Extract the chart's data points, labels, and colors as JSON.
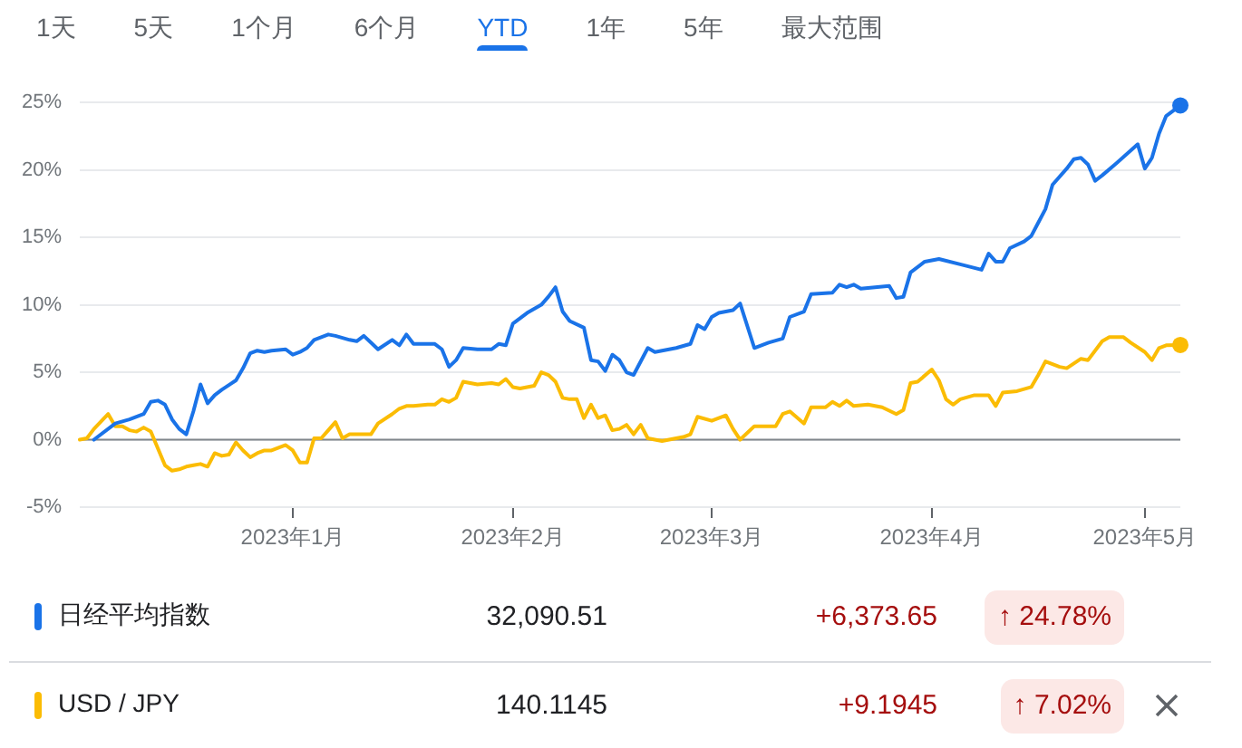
{
  "chart_data": [
    {
      "type": "other",
      "categories": [
        "1天",
        "5天",
        "1个月",
        "6个月",
        "YTD",
        "1年",
        "5年",
        "最大范围"
      ],
      "colors": [
        "#5f6368",
        "#5f6368",
        "#5f6368",
        "#5f6368",
        "#1a73e8",
        "#5f6368",
        "#5f6368",
        "#5f6368"
      ]
    },
    {
      "type": "line",
      "xlim": [
        "2022-12-02",
        "2023-05-06"
      ],
      "xticks": [
        {
          "value": "2023-01-01",
          "label": "2023年1月"
        },
        {
          "value": "2023-02-01",
          "label": "2023年2月"
        },
        {
          "value": "2023-03-01",
          "label": "2023年3月"
        },
        {
          "value": "2023-04-01",
          "label": "2023年4月"
        },
        {
          "value": "2023-05-01",
          "label": "2023年5月"
        }
      ],
      "ylim": [
        -5,
        25
      ],
      "yticks": [
        {
          "value": -5,
          "label": "-5%"
        },
        {
          "value": 0,
          "label": "0%"
        },
        {
          "value": 5,
          "label": "5%"
        },
        {
          "value": 10,
          "label": "10%"
        },
        {
          "value": 15,
          "label": "15%"
        },
        {
          "value": 20,
          "label": "20%"
        },
        {
          "value": 25,
          "label": "25%"
        }
      ],
      "grid": "y",
      "legend": "bottom",
      "line_style": "solid",
      "ref_lines": [
        {
          "axis": "y",
          "value": 0,
          "color": "#80868b"
        }
      ],
      "series": [
        {
          "name": "日经平均指数",
          "color": "#1a73e8",
          "x": [
            "2022-12-04",
            "2022-12-07",
            "2022-12-09",
            "2022-12-11",
            "2022-12-12",
            "2022-12-13",
            "2022-12-14",
            "2022-12-15",
            "2022-12-16",
            "2022-12-17",
            "2022-12-18",
            "2022-12-19",
            "2022-12-20",
            "2022-12-21",
            "2022-12-22",
            "2022-12-24",
            "2022-12-25",
            "2022-12-26",
            "2022-12-27",
            "2022-12-28",
            "2022-12-29",
            "2022-12-31",
            "2023-01-01",
            "2023-01-02",
            "2023-01-03",
            "2023-01-04",
            "2023-01-06",
            "2023-01-07",
            "2023-01-09",
            "2023-01-10",
            "2023-01-11",
            "2023-01-12",
            "2023-01-13",
            "2023-01-15",
            "2023-01-16",
            "2023-01-17",
            "2023-01-18",
            "2023-01-19",
            "2023-01-21",
            "2023-01-22",
            "2023-01-23",
            "2023-01-24",
            "2023-01-25",
            "2023-01-27",
            "2023-01-29",
            "2023-01-30",
            "2023-01-31",
            "2023-02-01",
            "2023-02-03",
            "2023-02-05",
            "2023-02-06",
            "2023-02-07",
            "2023-02-08",
            "2023-02-09",
            "2023-02-11",
            "2023-02-12",
            "2023-02-13",
            "2023-02-14",
            "2023-02-15",
            "2023-02-16",
            "2023-02-17",
            "2023-02-18",
            "2023-02-20",
            "2023-02-21",
            "2023-02-24",
            "2023-02-26",
            "2023-02-27",
            "2023-02-28",
            "2023-03-01",
            "2023-03-02",
            "2023-03-04",
            "2023-03-05",
            "2023-03-07",
            "2023-03-09",
            "2023-03-11",
            "2023-03-12",
            "2023-03-14",
            "2023-03-15",
            "2023-03-18",
            "2023-03-19",
            "2023-03-20",
            "2023-03-21",
            "2023-03-22",
            "2023-03-24",
            "2023-03-26",
            "2023-03-27",
            "2023-03-28",
            "2023-03-29",
            "2023-03-31",
            "2023-04-02",
            "2023-04-05",
            "2023-04-08",
            "2023-04-09",
            "2023-04-10",
            "2023-04-11",
            "2023-04-12",
            "2023-04-14",
            "2023-04-15",
            "2023-04-16",
            "2023-04-17",
            "2023-04-18",
            "2023-04-20",
            "2023-04-21",
            "2023-04-22",
            "2023-04-23",
            "2023-04-24",
            "2023-04-25",
            "2023-04-27",
            "2023-04-30",
            "2023-05-01",
            "2023-05-02",
            "2023-05-03",
            "2023-05-04",
            "2023-05-06"
          ],
          "values": [
            0,
            1.2,
            1.5,
            1.9,
            2.8,
            2.9,
            2.6,
            1.5,
            0.8,
            0.4,
            2.1,
            4.1,
            2.7,
            3.3,
            3.7,
            4.4,
            5.3,
            6.4,
            6.6,
            6.5,
            6.6,
            6.7,
            6.3,
            6.5,
            6.8,
            7.4,
            7.8,
            7.7,
            7.4,
            7.3,
            7.7,
            7.2,
            6.7,
            7.4,
            7.0,
            7.8,
            7.1,
            7.1,
            7.1,
            6.7,
            5.4,
            5.9,
            6.8,
            6.7,
            6.7,
            7.1,
            7.0,
            8.6,
            9.4,
            10.0,
            10.6,
            11.3,
            9.5,
            8.8,
            8.3,
            5.9,
            5.8,
            5.1,
            6.3,
            5.9,
            5.0,
            4.8,
            6.8,
            6.5,
            6.8,
            7.1,
            8.5,
            8.2,
            9.1,
            9.4,
            9.6,
            10.1,
            6.8,
            7.2,
            7.5,
            9.1,
            9.5,
            10.8,
            10.9,
            11.5,
            11.3,
            11.5,
            11.2,
            11.3,
            11.4,
            10.5,
            10.6,
            12.4,
            13.2,
            13.4,
            13.0,
            12.6,
            13.8,
            13.2,
            13.2,
            14.2,
            14.7,
            15.1,
            16.1,
            17.1,
            18.9,
            20.1,
            20.8,
            20.9,
            20.4,
            19.2,
            19.6,
            20.5,
            21.9,
            20.1,
            20.9,
            22.7,
            24.0,
            24.78
          ]
        },
        {
          "name": "USD / JPY",
          "color": "#fbbc04",
          "x": [
            "2022-12-02",
            "2022-12-03",
            "2022-12-04",
            "2022-12-06",
            "2022-12-07",
            "2022-12-08",
            "2022-12-09",
            "2022-12-10",
            "2022-12-11",
            "2022-12-12",
            "2022-12-14",
            "2022-12-15",
            "2022-12-16",
            "2022-12-17",
            "2022-12-18",
            "2022-12-19",
            "2022-12-20",
            "2022-12-21",
            "2022-12-22",
            "2022-12-23",
            "2022-12-24",
            "2022-12-25",
            "2022-12-26",
            "2022-12-27",
            "2022-12-28",
            "2022-12-29",
            "2022-12-31",
            "2023-01-01",
            "2023-01-02",
            "2023-01-03",
            "2023-01-04",
            "2023-01-05",
            "2023-01-06",
            "2023-01-07",
            "2023-01-08",
            "2023-01-09",
            "2023-01-10",
            "2023-01-12",
            "2023-01-13",
            "2023-01-15",
            "2023-01-16",
            "2023-01-17",
            "2023-01-18",
            "2023-01-20",
            "2023-01-21",
            "2023-01-22",
            "2023-01-23",
            "2023-01-24",
            "2023-01-25",
            "2023-01-27",
            "2023-01-29",
            "2023-01-30",
            "2023-01-31",
            "2023-02-01",
            "2023-02-02",
            "2023-02-04",
            "2023-02-05",
            "2023-02-06",
            "2023-02-07",
            "2023-02-08",
            "2023-02-09",
            "2023-02-10",
            "2023-02-11",
            "2023-02-12",
            "2023-02-13",
            "2023-02-14",
            "2023-02-15",
            "2023-02-16",
            "2023-02-17",
            "2023-02-18",
            "2023-02-19",
            "2023-02-20",
            "2023-02-22",
            "2023-02-23",
            "2023-02-25",
            "2023-02-26",
            "2023-02-27",
            "2023-03-01",
            "2023-03-03",
            "2023-03-04",
            "2023-03-05",
            "2023-03-07",
            "2023-03-10",
            "2023-03-11",
            "2023-03-12",
            "2023-03-14",
            "2023-03-15",
            "2023-03-17",
            "2023-03-18",
            "2023-03-19",
            "2023-03-20",
            "2023-03-21",
            "2023-03-23",
            "2023-03-25",
            "2023-03-27",
            "2023-03-28",
            "2023-03-29",
            "2023-03-30",
            "2023-04-01",
            "2023-04-02",
            "2023-04-03",
            "2023-04-04",
            "2023-04-05",
            "2023-04-07",
            "2023-04-09",
            "2023-04-10",
            "2023-04-11",
            "2023-04-13",
            "2023-04-15",
            "2023-04-16",
            "2023-04-17",
            "2023-04-19",
            "2023-04-20",
            "2023-04-22",
            "2023-04-23",
            "2023-04-25",
            "2023-04-26",
            "2023-04-28",
            "2023-04-29",
            "2023-05-01",
            "2023-05-02",
            "2023-05-03",
            "2023-05-04",
            "2023-05-06"
          ],
          "values": [
            0,
            0.1,
            0.8,
            1.9,
            1.0,
            1.0,
            0.7,
            0.6,
            0.9,
            0.6,
            -1.9,
            -2.3,
            -2.2,
            -2.0,
            -1.9,
            -1.8,
            -2.0,
            -1.0,
            -1.2,
            -1.1,
            -0.2,
            -0.8,
            -1.3,
            -1.0,
            -0.8,
            -0.8,
            -0.4,
            -0.8,
            -1.7,
            -1.7,
            0.1,
            0.1,
            0.7,
            1.3,
            0.1,
            0.4,
            0.4,
            0.4,
            1.2,
            1.9,
            2.3,
            2.5,
            2.5,
            2.6,
            2.6,
            3.0,
            2.8,
            3.1,
            4.3,
            4.1,
            4.2,
            4.1,
            4.5,
            3.9,
            3.8,
            4.0,
            5.0,
            4.8,
            4.3,
            3.1,
            3.0,
            3.0,
            1.6,
            2.6,
            1.6,
            1.8,
            0.7,
            0.8,
            1.1,
            0.4,
            1.1,
            0.1,
            -0.1,
            0,
            0.2,
            0.4,
            1.7,
            1.4,
            1.8,
            0.8,
            0.0,
            1.0,
            1.0,
            1.9,
            2.1,
            1.2,
            2.4,
            2.4,
            2.8,
            2.5,
            2.9,
            2.5,
            2.6,
            2.4,
            1.9,
            2.2,
            4.2,
            4.3,
            5.2,
            4.4,
            3.0,
            2.6,
            3.0,
            3.3,
            3.3,
            2.5,
            3.5,
            3.6,
            3.9,
            4.8,
            5.8,
            5.4,
            5.3,
            6.0,
            5.9,
            7.3,
            7.6,
            7.6,
            7.2,
            6.5,
            5.9,
            6.8,
            7.0,
            7.02
          ]
        },
        {
          "type": "scatter",
          "color": "#1a73e8",
          "marker": "circle",
          "x": [
            "2023-05-06"
          ],
          "values": [
            24.78
          ]
        },
        {
          "type": "scatter",
          "color": "#fbbc04",
          "marker": "circle",
          "x": [
            "2023-05-06"
          ],
          "values": [
            7.02
          ]
        }
      ],
      "annotations": [
        "32,090.51",
        "+6,373.65",
        "↑ 24.78%",
        "140.1145",
        "+9.1945",
        "↑ 7.02%"
      ]
    }
  ]
}
